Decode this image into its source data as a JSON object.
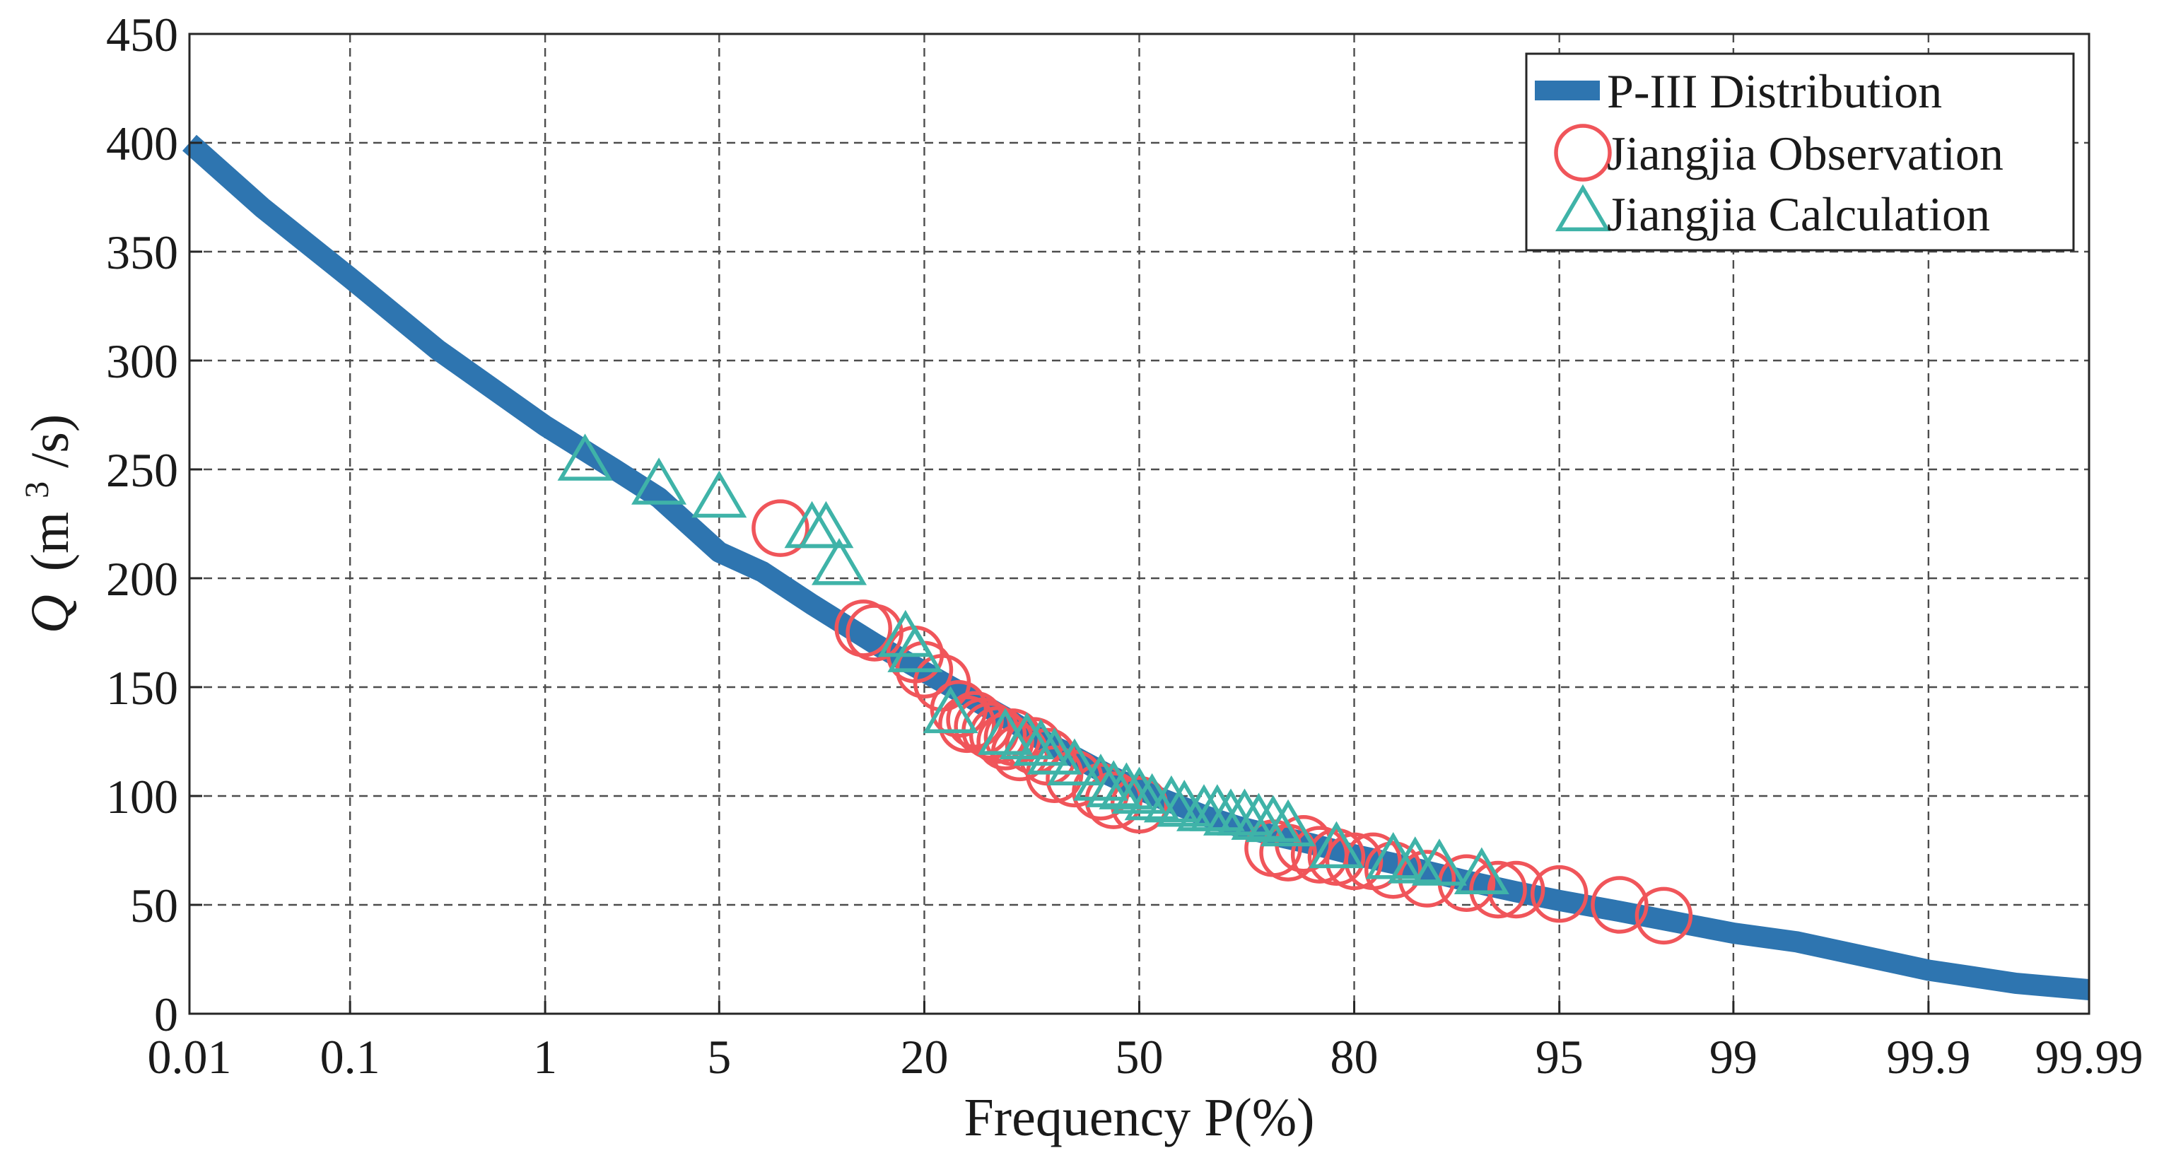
{
  "chart_data": {
    "type": "scatter",
    "x_scale": "probability",
    "xlabel": "Frequency P(%)",
    "ylabel": "Q (m3/s)",
    "ylabel_parts": {
      "symbol": "Q",
      "open": "(m",
      "sup": "3",
      "close": "/s)"
    },
    "xlim": [
      0.01,
      99.99
    ],
    "ylim": [
      0,
      450
    ],
    "x_ticks": [
      0.01,
      0.1,
      1,
      5,
      20,
      50,
      80,
      95,
      99,
      99.9,
      99.99
    ],
    "x_tick_labels": [
      "0.01",
      "0.1",
      "1",
      "5",
      "20",
      "50",
      "80",
      "95",
      "99",
      "99.9",
      "99.99"
    ],
    "y_ticks": [
      0,
      50,
      100,
      150,
      200,
      250,
      300,
      350,
      400,
      450
    ],
    "y_tick_labels": [
      "0",
      "50",
      "100",
      "150",
      "200",
      "250",
      "300",
      "350",
      "400",
      "450"
    ],
    "grid": true,
    "legend_position": "top-right",
    "series": [
      {
        "name": "P-III Distribution",
        "kind": "line",
        "color": "#2e75b0",
        "x": [
          0.01,
          0.03,
          0.1,
          0.3,
          1,
          2,
          3,
          5,
          7,
          10,
          15,
          20,
          25,
          30,
          35,
          40,
          45,
          50,
          55,
          60,
          65,
          70,
          75,
          80,
          85,
          90,
          93,
          95,
          97,
          99,
          99.5,
          99.9,
          99.97,
          99.99
        ],
        "y": [
          400,
          370,
          338,
          305,
          270,
          250,
          237,
          212,
          203,
          188,
          170,
          157,
          146,
          136,
          126,
          118,
          110,
          103,
          97,
          91,
          86,
          82,
          78,
          73,
          68,
          61,
          56,
          52,
          47,
          37,
          33,
          20,
          14,
          11
        ]
      },
      {
        "name": "Jiangjia Observation",
        "kind": "circle",
        "color": "#f0555a",
        "x": [
          8,
          14,
          15,
          19,
          20,
          22,
          24,
          25,
          26,
          27,
          28,
          29,
          30,
          31,
          32,
          34,
          36,
          37,
          40,
          44,
          46,
          50,
          70,
          72,
          74,
          76,
          78,
          80,
          82,
          84,
          87,
          90,
          92,
          93,
          95,
          97,
          98
        ],
        "y": [
          223,
          177,
          175,
          165,
          158,
          152,
          140,
          133,
          135,
          132,
          130,
          128,
          125,
          127,
          120,
          123,
          118,
          110,
          108,
          102,
          98,
          96,
          76,
          74,
          78,
          73,
          72,
          70,
          70,
          66,
          62,
          60,
          57,
          57,
          55,
          50,
          45
        ]
      },
      {
        "name": "Jiangjia Calculation",
        "kind": "triangle",
        "color": "#3fb3a8",
        "x": [
          1.5,
          3,
          5,
          10,
          11,
          12,
          18,
          19,
          23,
          30,
          33,
          35,
          37,
          40,
          44,
          46,
          48,
          50,
          52,
          55,
          57,
          60,
          62,
          64,
          66,
          68,
          70,
          72,
          78,
          84,
          86,
          88,
          91
        ],
        "y": [
          253,
          242,
          236,
          222,
          222,
          205,
          172,
          165,
          137,
          127,
          125,
          122,
          118,
          113,
          106,
          103,
          102,
          100,
          97,
          96,
          94,
          92,
          92,
          90,
          90,
          88,
          87,
          85,
          75,
          70,
          68,
          67,
          63
        ]
      }
    ]
  }
}
